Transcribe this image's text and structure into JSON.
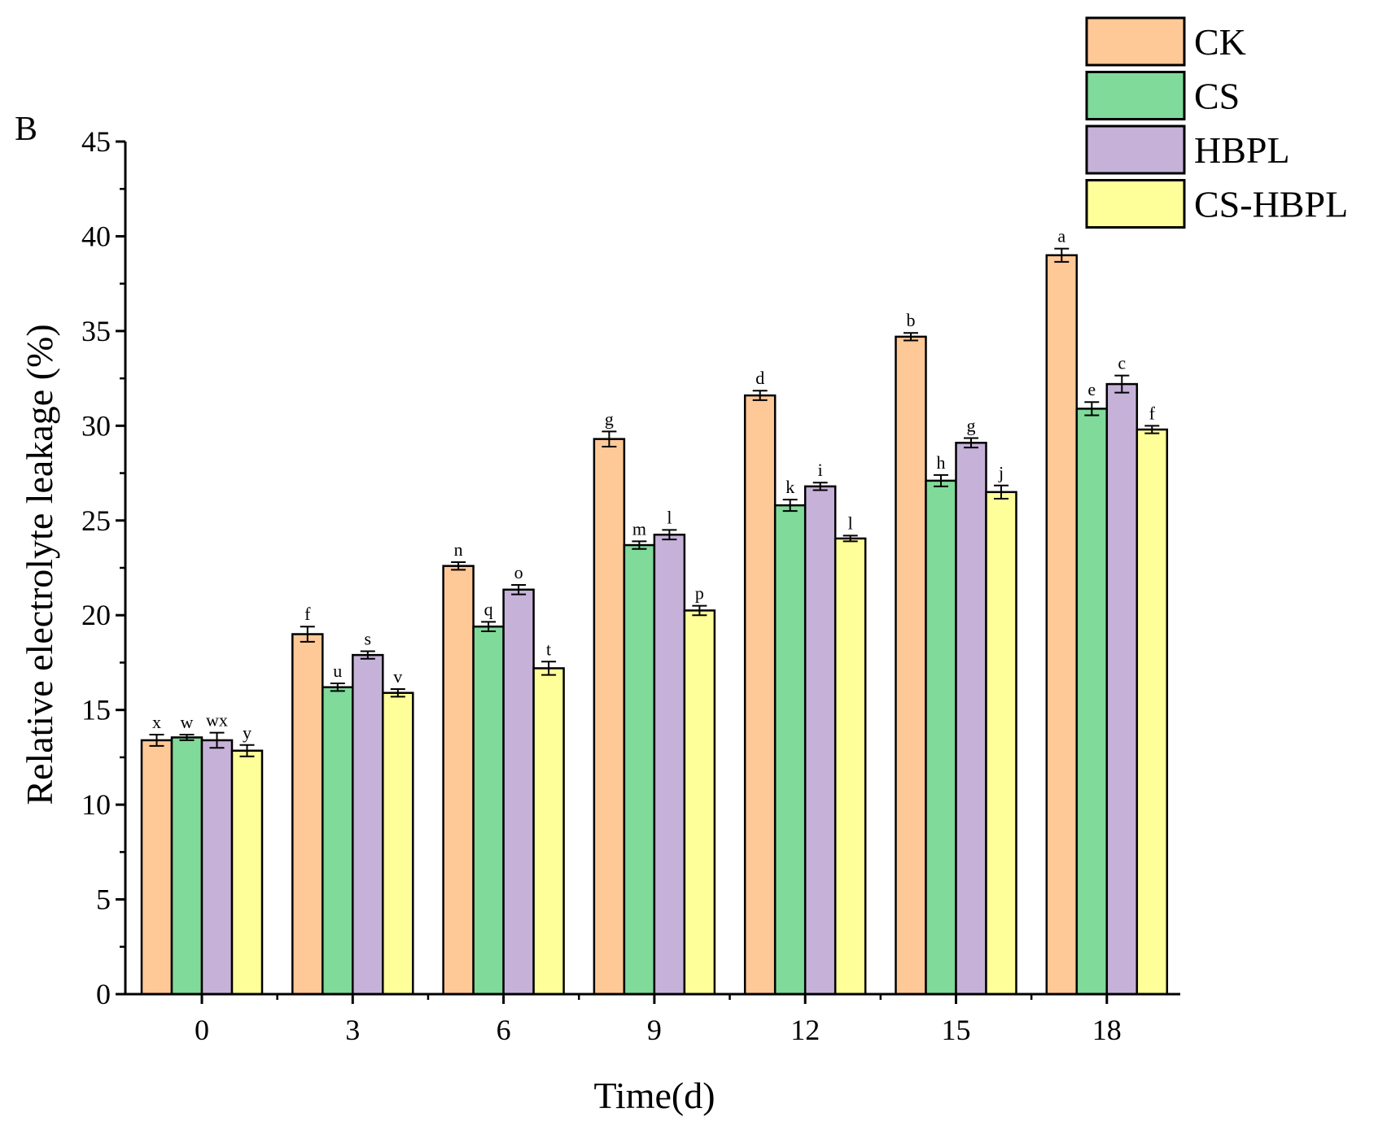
{
  "panel_label": "B",
  "chart_data": {
    "type": "bar",
    "title": "",
    "xlabel": "Time(d)",
    "ylabel": "Relative electrolyte leakage  (%)",
    "categories": [
      "0",
      "3",
      "6",
      "9",
      "12",
      "15",
      "18"
    ],
    "ylim": [
      0,
      45
    ],
    "yticks": [
      0,
      5,
      10,
      15,
      20,
      25,
      30,
      35,
      40,
      45
    ],
    "grid": false,
    "legend_position": "top-right",
    "series": [
      {
        "name": "CK",
        "color": "#FFC897",
        "values": [
          13.4,
          19.0,
          22.6,
          29.3,
          31.6,
          34.7,
          39.0
        ],
        "errors": [
          0.3,
          0.4,
          0.2,
          0.4,
          0.25,
          0.2,
          0.35
        ],
        "labels": [
          "x",
          "f",
          "n",
          "g",
          "d",
          "b",
          "a"
        ]
      },
      {
        "name": "CS",
        "color": "#80DA9A",
        "values": [
          13.55,
          16.2,
          19.4,
          23.7,
          25.8,
          27.1,
          30.9
        ],
        "errors": [
          0.15,
          0.2,
          0.25,
          0.2,
          0.3,
          0.3,
          0.35
        ],
        "labels": [
          "w",
          "u",
          "q",
          "m",
          "k",
          "h",
          "e"
        ]
      },
      {
        "name": "HBPL",
        "color": "#C6B2D9",
        "values": [
          13.4,
          17.9,
          21.35,
          24.25,
          26.8,
          29.1,
          32.2
        ],
        "errors": [
          0.4,
          0.2,
          0.25,
          0.25,
          0.2,
          0.25,
          0.45
        ],
        "labels": [
          "wx",
          "s",
          "o",
          "l",
          "i",
          "g",
          "c"
        ]
      },
      {
        "name": "CS-HBPL",
        "color": "#FFFF99",
        "values": [
          12.85,
          15.9,
          17.2,
          20.25,
          24.05,
          26.5,
          29.8
        ],
        "errors": [
          0.3,
          0.2,
          0.35,
          0.25,
          0.15,
          0.35,
          0.2
        ],
        "labels": [
          "y",
          "v",
          "t",
          "p",
          "l",
          "j",
          "f"
        ]
      }
    ]
  }
}
